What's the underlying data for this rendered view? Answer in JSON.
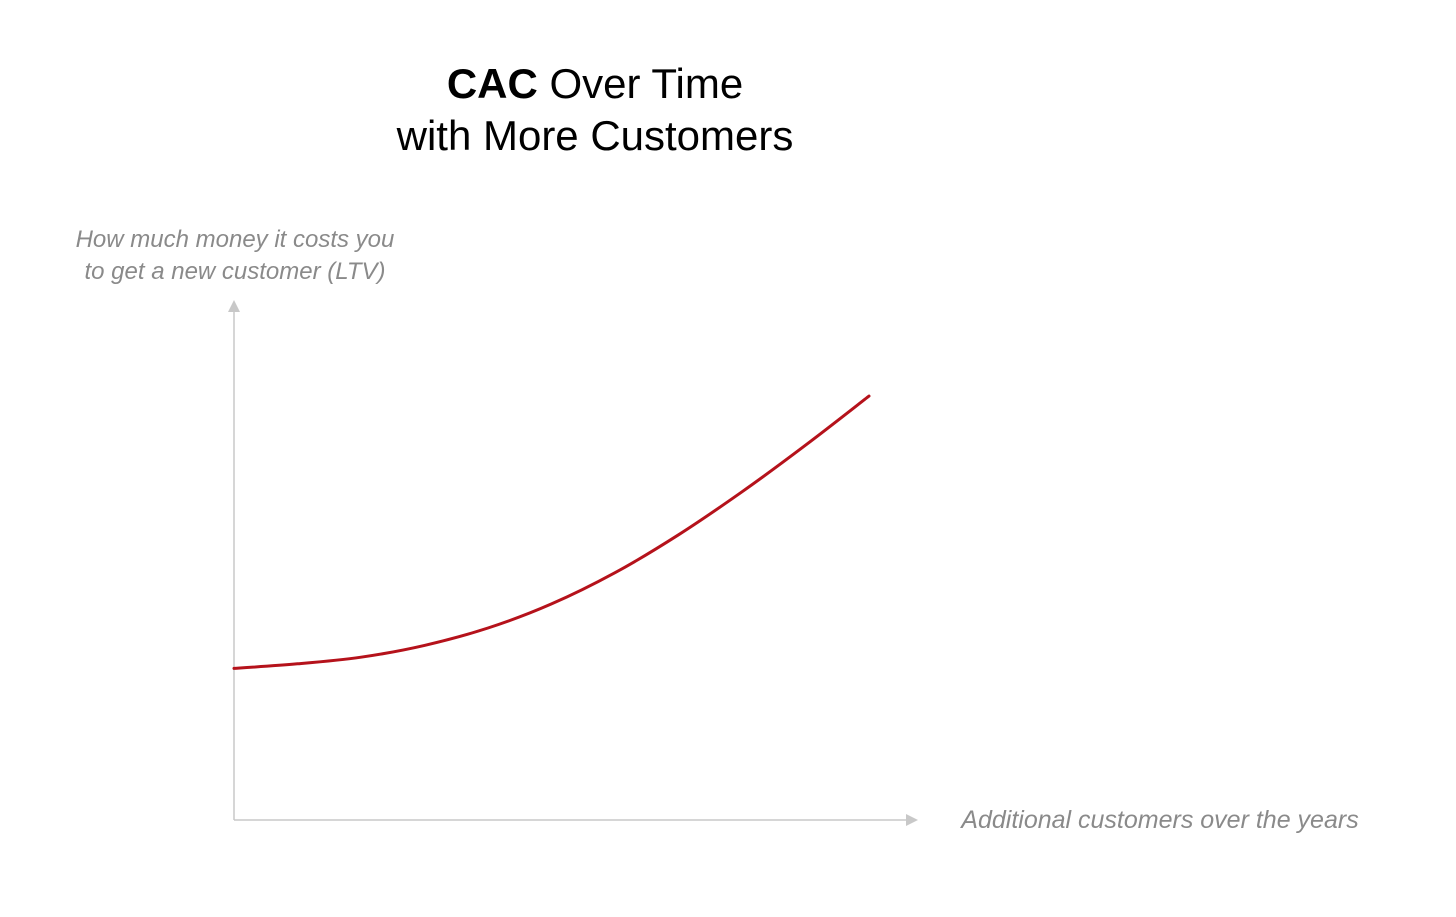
{
  "title": {
    "bold": "CAC",
    "rest_line1": " Over Time",
    "line2": "with More Customers"
  },
  "chart_data": {
    "type": "line",
    "ylabel_line1": "How much money it costs you",
    "ylabel_line2": "to get a new customer (LTV)",
    "xlabel": "Additional customers over the years",
    "xlim": [
      0,
      1
    ],
    "ylim": [
      0,
      1
    ],
    "grid": false,
    "legend": "none",
    "series": [
      {
        "color": "#b5121b",
        "x": [
          0,
          0.1,
          0.2,
          0.3,
          0.4,
          0.5,
          0.6,
          0.7,
          0.8,
          0.9,
          1.0
        ],
        "y": [
          0.296,
          0.305,
          0.318,
          0.341,
          0.375,
          0.422,
          0.483,
          0.557,
          0.641,
          0.732,
          0.828
        ]
      }
    ]
  },
  "colors": {
    "axis": "#c8c8c8",
    "label": "#8a8a8a",
    "curve": "#b5121b"
  }
}
